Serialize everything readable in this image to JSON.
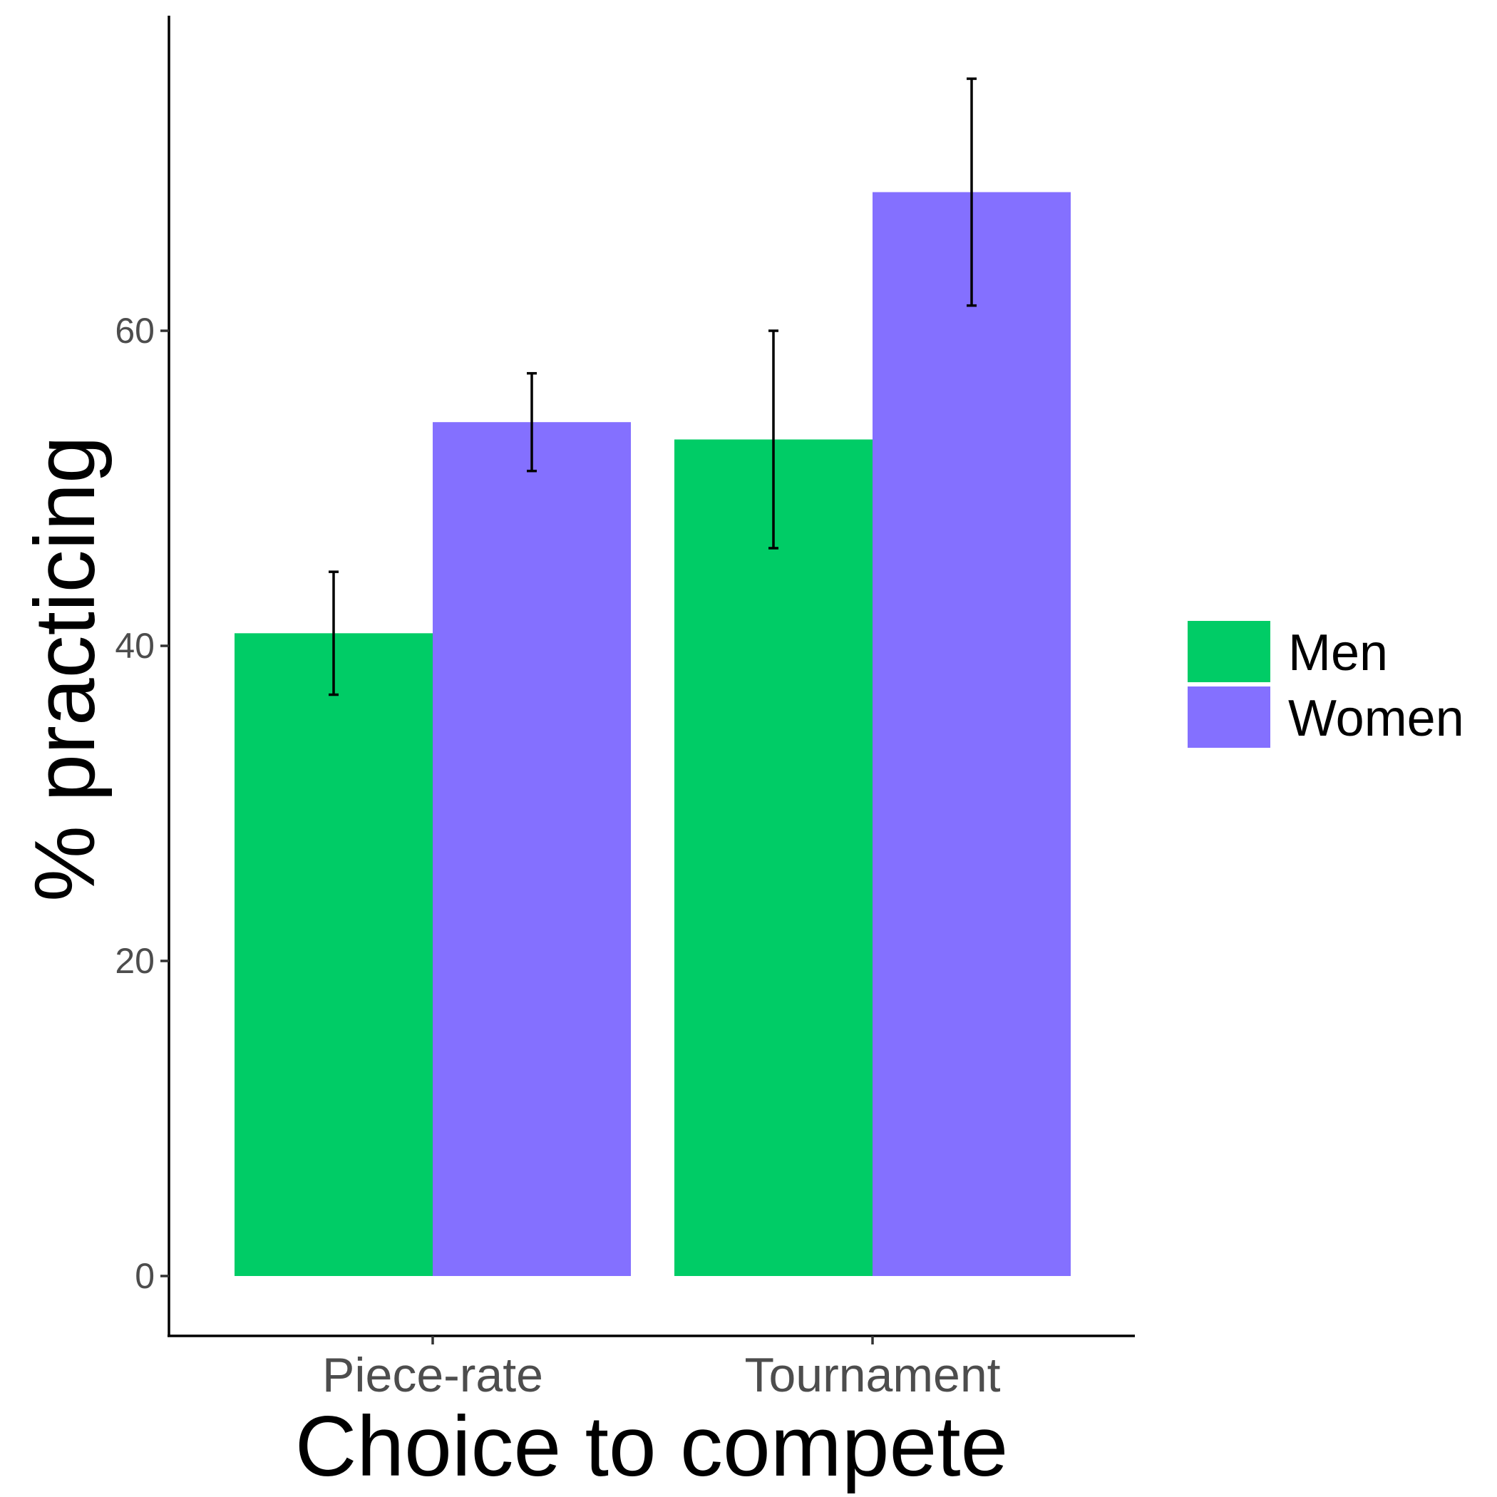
{
  "chart_data": {
    "type": "bar",
    "categories": [
      "Piece-rate",
      "Tournament"
    ],
    "series": [
      {
        "name": "Men",
        "color": "#00CC66",
        "values": [
          40.8,
          53.1
        ],
        "error_low": [
          36.9,
          46.2
        ],
        "error_high": [
          44.7,
          60.0
        ]
      },
      {
        "name": "Women",
        "color": "#8470FF",
        "values": [
          54.2,
          68.8
        ],
        "error_low": [
          51.1,
          61.6
        ],
        "error_high": [
          57.3,
          76.0
        ]
      }
    ],
    "xlabel": "Choice to compete",
    "ylabel": "% practicing",
    "ylim": [
      -3.8,
      80.0
    ],
    "yticks": [
      0,
      20,
      40,
      60
    ],
    "ytick_labels": [
      "0",
      "20",
      "40",
      "60"
    ],
    "grid": false,
    "legend_position": "right"
  }
}
